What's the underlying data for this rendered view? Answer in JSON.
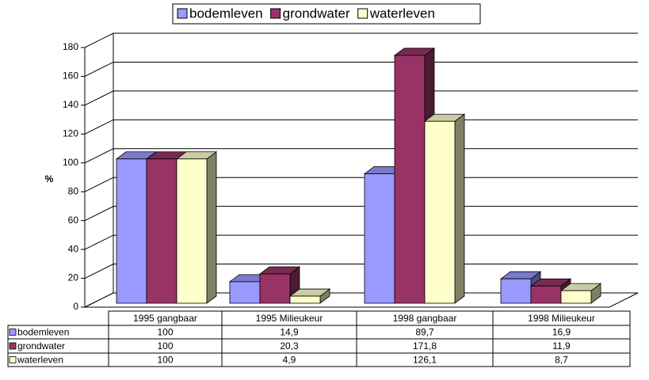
{
  "chart_data": {
    "type": "bar3d",
    "y_axis_label": "%",
    "categories": [
      "1995 gangbaar",
      "1995 Milieukeur",
      "1998 gangbaar",
      "1998 Milieukeur"
    ],
    "series": [
      {
        "name": "bodemleven",
        "color": "#9999ff",
        "values": [
          100,
          14.9,
          89.7,
          16.9
        ],
        "value_labels": [
          "100",
          "14,9",
          "89,7",
          "16,9"
        ]
      },
      {
        "name": "grondwater",
        "color": "#993366",
        "values": [
          100,
          20.3,
          171.8,
          11.9
        ],
        "value_labels": [
          "100",
          "20,3",
          "171,8",
          "11,9"
        ]
      },
      {
        "name": "waterleven",
        "color": "#ffffcc",
        "values": [
          100,
          4.9,
          126.1,
          8.7
        ],
        "value_labels": [
          "100",
          "4,9",
          "126,1",
          "8,7"
        ]
      }
    ],
    "ylim": [
      0,
      180
    ],
    "yticks": [
      0,
      20,
      40,
      60,
      80,
      100,
      120,
      140,
      160,
      180
    ],
    "grid": true,
    "legend": "top"
  }
}
